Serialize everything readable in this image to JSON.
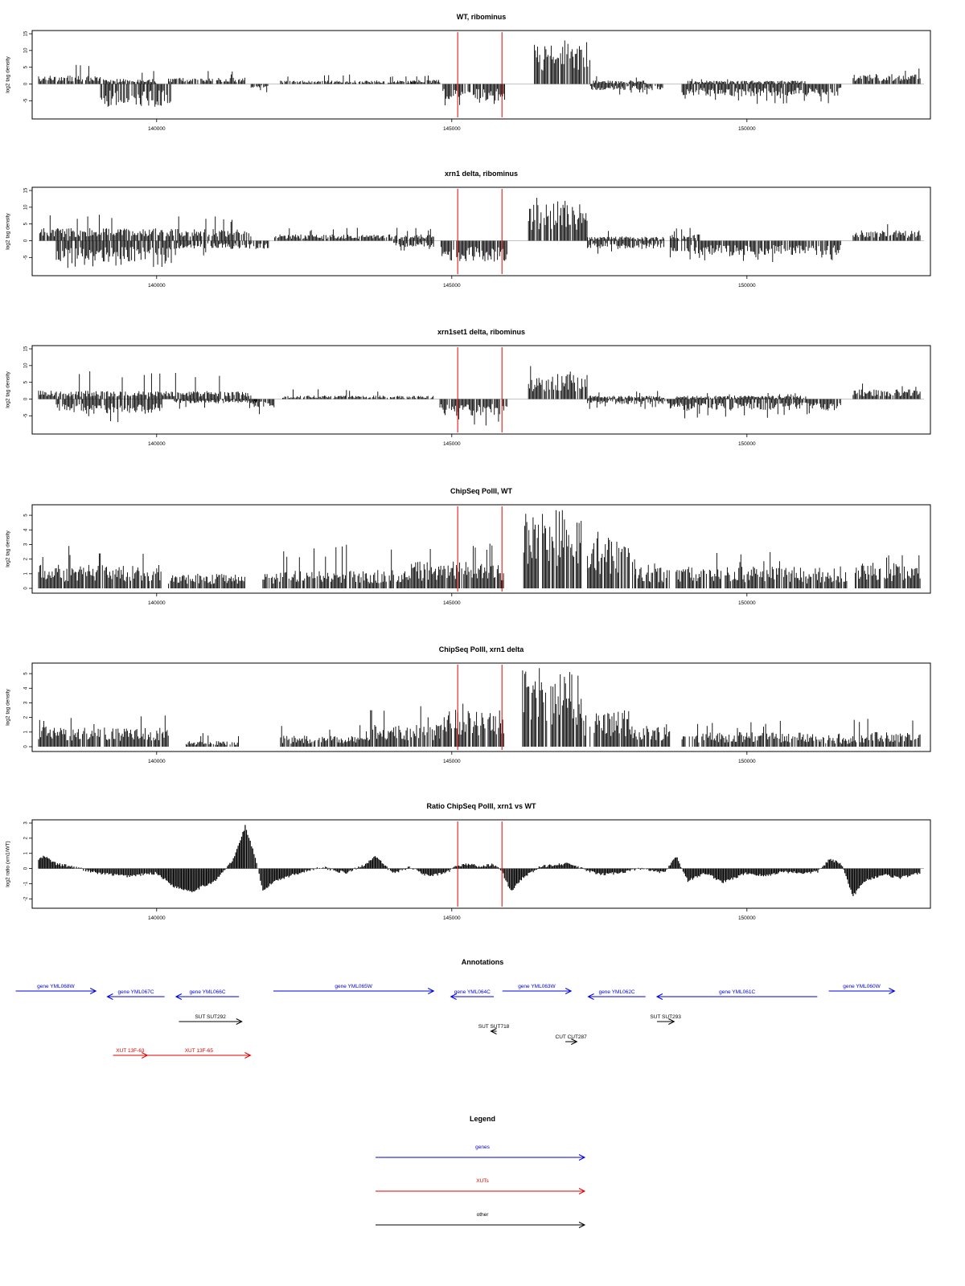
{
  "chart_data": [
    {
      "type": "bar",
      "title": "WT, ribominus",
      "ylabel": "log2 tag density",
      "xlim": [
        138000,
        153000
      ],
      "ylim": [
        -9,
        15
      ],
      "yticks": [
        -5,
        0,
        5,
        10,
        15
      ],
      "xticks": [
        140000,
        145000,
        150000
      ],
      "xtick_labels": [
        "140000",
        "145000",
        "150000"
      ],
      "vlines": [
        145100,
        145850
      ],
      "vline_color": "#e00000",
      "bar_color": "#000000",
      "segments": [
        {
          "from": 138000,
          "to": 139100,
          "sign": 1,
          "level": 2.0,
          "peak": 6.5
        },
        {
          "from": 139100,
          "to": 140000,
          "sign": 1,
          "level": 1.2,
          "peak": 4.0
        },
        {
          "from": 139050,
          "to": 140250,
          "sign": -1,
          "level": 5.5,
          "peak": 8.0
        },
        {
          "from": 140200,
          "to": 141500,
          "sign": 1,
          "level": 1.5,
          "peak": 4.0
        },
        {
          "from": 141600,
          "to": 141900,
          "sign": -1,
          "level": 1.0,
          "peak": 2.5
        },
        {
          "from": 142100,
          "to": 144400,
          "sign": 1,
          "level": 0.8,
          "peak": 3.0
        },
        {
          "from": 144300,
          "to": 144800,
          "sign": 1,
          "level": 1.0,
          "peak": 3.0
        },
        {
          "from": 144850,
          "to": 145900,
          "sign": -1,
          "level": 4.0,
          "peak": 6.5
        },
        {
          "from": 146400,
          "to": 147350,
          "sign": 1,
          "level": 10.0,
          "peak": 14.5
        },
        {
          "from": 147350,
          "to": 148600,
          "sign": -1,
          "level": 1.5,
          "peak": 3.5
        },
        {
          "from": 147400,
          "to": 148300,
          "sign": 1,
          "level": 0.8,
          "peak": 2.5
        },
        {
          "from": 148900,
          "to": 151600,
          "sign": -1,
          "level": 3.0,
          "peak": 6.0
        },
        {
          "from": 149000,
          "to": 151000,
          "sign": 1,
          "level": 0.8,
          "peak": 2.0
        },
        {
          "from": 151800,
          "to": 152950,
          "sign": 1,
          "level": 2.5,
          "peak": 5.5
        }
      ]
    },
    {
      "type": "bar",
      "title": "xrn1 delta, ribominus",
      "ylabel": "log2 tag density",
      "xlim": [
        138000,
        153000
      ],
      "ylim": [
        -9,
        15
      ],
      "yticks": [
        -5,
        0,
        5,
        10,
        15
      ],
      "xticks": [
        140000,
        145000,
        150000
      ],
      "xtick_labels": [
        "140000",
        "145000",
        "150000"
      ],
      "vlines": [
        145100,
        145850
      ],
      "vline_color": "#e00000",
      "bar_color": "#000000",
      "segments": [
        {
          "from": 138000,
          "to": 141600,
          "sign": 1,
          "level": 3.0,
          "peak": 8.0
        },
        {
          "from": 138300,
          "to": 140250,
          "sign": -1,
          "level": 5.0,
          "peak": 8.5
        },
        {
          "from": 140300,
          "to": 141900,
          "sign": -1,
          "level": 2.0,
          "peak": 4.5
        },
        {
          "from": 142000,
          "to": 144700,
          "sign": 1,
          "level": 1.5,
          "peak": 4.0
        },
        {
          "from": 144000,
          "to": 144700,
          "sign": -1,
          "level": 1.5,
          "peak": 3.0
        },
        {
          "from": 144800,
          "to": 145950,
          "sign": -1,
          "level": 5.0,
          "peak": 8.0
        },
        {
          "from": 146300,
          "to": 147300,
          "sign": 1,
          "level": 9.0,
          "peak": 13.0
        },
        {
          "from": 147300,
          "to": 148600,
          "sign": -1,
          "level": 2.0,
          "peak": 4.0
        },
        {
          "from": 147300,
          "to": 148600,
          "sign": 1,
          "level": 1.0,
          "peak": 3.0
        },
        {
          "from": 148700,
          "to": 151600,
          "sign": -1,
          "level": 3.5,
          "peak": 6.5
        },
        {
          "from": 148700,
          "to": 149200,
          "sign": 1,
          "level": 1.5,
          "peak": 4.0
        },
        {
          "from": 151800,
          "to": 152950,
          "sign": 1,
          "level": 2.5,
          "peak": 5.5
        }
      ]
    },
    {
      "type": "bar",
      "title": "xrn1set1 delta, ribominus",
      "ylabel": "log2 tag density",
      "xlim": [
        138000,
        153000
      ],
      "ylim": [
        -9,
        15
      ],
      "yticks": [
        -5,
        0,
        5,
        10,
        15
      ],
      "xticks": [
        140000,
        145000,
        150000
      ],
      "xtick_labels": [
        "140000",
        "145000",
        "150000"
      ],
      "vlines": [
        145100,
        145850
      ],
      "vline_color": "#e00000",
      "bar_color": "#000000",
      "segments": [
        {
          "from": 138000,
          "to": 141600,
          "sign": 1,
          "level": 2.0,
          "peak": 9.0
        },
        {
          "from": 138300,
          "to": 140100,
          "sign": -1,
          "level": 3.5,
          "peak": 7.0
        },
        {
          "from": 140300,
          "to": 141700,
          "sign": -1,
          "level": 1.0,
          "peak": 3.0
        },
        {
          "from": 141600,
          "to": 142000,
          "sign": -1,
          "level": 2.0,
          "peak": 5.0
        },
        {
          "from": 142100,
          "to": 144700,
          "sign": 1,
          "level": 0.8,
          "peak": 3.0
        },
        {
          "from": 144800,
          "to": 145950,
          "sign": -1,
          "level": 4.0,
          "peak": 8.0
        },
        {
          "from": 146300,
          "to": 147300,
          "sign": 1,
          "level": 6.0,
          "peak": 11.0
        },
        {
          "from": 147300,
          "to": 148700,
          "sign": -1,
          "level": 1.2,
          "peak": 3.0
        },
        {
          "from": 147300,
          "to": 148600,
          "sign": 1,
          "level": 0.8,
          "peak": 2.5
        },
        {
          "from": 148700,
          "to": 151600,
          "sign": -1,
          "level": 2.8,
          "peak": 6.0
        },
        {
          "from": 148800,
          "to": 151000,
          "sign": 1,
          "level": 0.8,
          "peak": 2.0
        },
        {
          "from": 151800,
          "to": 152950,
          "sign": 1,
          "level": 2.3,
          "peak": 5.0
        }
      ]
    },
    {
      "type": "bar",
      "title": "ChipSeq PolII, WT",
      "ylabel": "log2 tag density",
      "xlim": [
        138000,
        153000
      ],
      "ylim": [
        0,
        5.5
      ],
      "yticks": [
        0,
        1,
        2,
        3,
        4,
        5
      ],
      "xticks": [
        140000,
        145000,
        150000
      ],
      "xtick_labels": [
        "140000",
        "145000",
        "150000"
      ],
      "vlines": [
        145100,
        145850
      ],
      "vline_color": "#e00000",
      "bar_color": "#000000",
      "segments": [
        {
          "from": 138000,
          "to": 140100,
          "sign": 1,
          "level": 1.3,
          "peak": 3.0
        },
        {
          "from": 140200,
          "to": 141500,
          "sign": 1,
          "level": 0.8,
          "peak": 1.0
        },
        {
          "from": 141800,
          "to": 142100,
          "sign": 1,
          "level": 0.8,
          "peak": 1.0
        },
        {
          "from": 142100,
          "to": 144300,
          "sign": 1,
          "level": 1.0,
          "peak": 3.0
        },
        {
          "from": 144300,
          "to": 145900,
          "sign": 1,
          "level": 1.5,
          "peak": 3.2
        },
        {
          "from": 146200,
          "to": 147200,
          "sign": 1,
          "level": 4.3,
          "peak": 5.5
        },
        {
          "from": 147300,
          "to": 148100,
          "sign": 1,
          "level": 2.8,
          "peak": 4.0
        },
        {
          "from": 148100,
          "to": 148700,
          "sign": 1,
          "level": 1.2,
          "peak": 2.0
        },
        {
          "from": 148800,
          "to": 151000,
          "sign": 1,
          "level": 1.2,
          "peak": 2.5
        },
        {
          "from": 151000,
          "to": 151700,
          "sign": 1,
          "level": 0.9,
          "peak": 1.6
        },
        {
          "from": 151800,
          "to": 152950,
          "sign": 1,
          "level": 1.4,
          "peak": 3.0
        }
      ]
    },
    {
      "type": "bar",
      "title": "ChipSeq PolII, xrn1 delta",
      "ylabel": "log2 tag density",
      "xlim": [
        138000,
        153000
      ],
      "ylim": [
        0,
        5.5
      ],
      "yticks": [
        0,
        1,
        2,
        3,
        4,
        5
      ],
      "xticks": [
        140000,
        145000,
        150000
      ],
      "xtick_labels": [
        "140000",
        "145000",
        "150000"
      ],
      "vlines": [
        145100,
        145850
      ],
      "vline_color": "#e00000",
      "bar_color": "#000000",
      "segments": [
        {
          "from": 138000,
          "to": 140200,
          "sign": 1,
          "level": 1.1,
          "peak": 2.2
        },
        {
          "from": 140500,
          "to": 141400,
          "sign": 1,
          "level": 0.3,
          "peak": 1.0
        },
        {
          "from": 142100,
          "to": 143500,
          "sign": 1,
          "level": 0.6,
          "peak": 1.5
        },
        {
          "from": 143500,
          "to": 144800,
          "sign": 1,
          "level": 1.2,
          "peak": 2.8
        },
        {
          "from": 144800,
          "to": 145900,
          "sign": 1,
          "level": 2.0,
          "peak": 3.2
        },
        {
          "from": 146200,
          "to": 147200,
          "sign": 1,
          "level": 4.2,
          "peak": 5.5
        },
        {
          "from": 147200,
          "to": 148000,
          "sign": 1,
          "level": 2.0,
          "peak": 3.0
        },
        {
          "from": 148000,
          "to": 148700,
          "sign": 1,
          "level": 1.2,
          "peak": 2.0
        },
        {
          "from": 148900,
          "to": 151300,
          "sign": 1,
          "level": 0.8,
          "peak": 1.8
        },
        {
          "from": 151300,
          "to": 151800,
          "sign": 1,
          "level": 0.5,
          "peak": 1.0
        },
        {
          "from": 151800,
          "to": 152950,
          "sign": 1,
          "level": 0.8,
          "peak": 2.0
        }
      ]
    },
    {
      "type": "area",
      "title": "Ratio ChipSeq PolII, xrn1 vs WT",
      "ylabel": "log2 ratio (xrn1/WT)",
      "xlim": [
        138000,
        153000
      ],
      "ylim": [
        -2.3,
        3.0
      ],
      "yticks": [
        -2,
        -1,
        0,
        1,
        2,
        3
      ],
      "xticks": [
        140000,
        145000,
        150000
      ],
      "xtick_labels": [
        "140000",
        "145000",
        "150000"
      ],
      "vlines": [
        145100,
        145850
      ],
      "vline_color": "#e00000",
      "x": [
        138000,
        138100,
        138300,
        138600,
        139000,
        139500,
        140000,
        140300,
        140600,
        141000,
        141300,
        141500,
        141650,
        141800,
        142000,
        142400,
        142800,
        143200,
        143500,
        143700,
        144000,
        144300,
        144600,
        144900,
        145100,
        145300,
        145500,
        145700,
        145850,
        146000,
        146200,
        146500,
        146800,
        147000,
        147200,
        147500,
        147800,
        148200,
        148600,
        148800,
        149000,
        149300,
        149600,
        150000,
        150300,
        150600,
        151000,
        151200,
        151400,
        151600,
        151800,
        152000,
        152300,
        152600,
        152950
      ],
      "values": [
        0.6,
        0.8,
        0.3,
        0.1,
        -0.3,
        -0.5,
        -0.3,
        -1.2,
        -1.5,
        -0.8,
        0.6,
        2.8,
        1.0,
        -1.5,
        -0.8,
        -0.3,
        0.1,
        -0.3,
        0.2,
        0.8,
        -0.3,
        0.1,
        -0.5,
        -0.3,
        0.2,
        0.3,
        0.1,
        0.3,
        -0.2,
        -1.5,
        -0.6,
        0.1,
        0.3,
        0.3,
        0.0,
        -0.4,
        -0.3,
        0.0,
        -0.3,
        0.8,
        -0.8,
        -0.3,
        -0.9,
        -0.3,
        -0.5,
        -0.2,
        -0.3,
        -0.2,
        0.6,
        0.3,
        -1.8,
        -0.8,
        -0.4,
        -0.6,
        -0.3
      ]
    }
  ],
  "annotations": {
    "title": "Annotations",
    "xlim": [
      138000,
      153000
    ],
    "items": [
      {
        "label": "gene YML068W",
        "kind": "gene",
        "from": 137600,
        "to": 139000,
        "row": 0,
        "strand": "+"
      },
      {
        "label": "gene YML067C",
        "kind": "gene",
        "from": 139200,
        "to": 140200,
        "row": 1,
        "strand": "-"
      },
      {
        "label": "gene YML066C",
        "kind": "gene",
        "from": 140400,
        "to": 141500,
        "row": 1,
        "strand": "-"
      },
      {
        "label": "gene YML065W",
        "kind": "gene",
        "from": 142100,
        "to": 144900,
        "row": 0,
        "strand": "+"
      },
      {
        "label": "gene YML064C",
        "kind": "gene",
        "from": 145200,
        "to": 145950,
        "row": 1,
        "strand": "-"
      },
      {
        "label": "gene YML063W",
        "kind": "gene",
        "from": 146100,
        "to": 147300,
        "row": 0,
        "strand": "+"
      },
      {
        "label": "gene YML062C",
        "kind": "gene",
        "from": 147600,
        "to": 148600,
        "row": 1,
        "strand": "-"
      },
      {
        "label": "gene YML061C",
        "kind": "gene",
        "from": 148800,
        "to": 151600,
        "row": 1,
        "strand": "-"
      },
      {
        "label": "gene YML060W",
        "kind": "gene",
        "from": 151800,
        "to": 152950,
        "row": 0,
        "strand": "+"
      },
      {
        "label": "SUT SUT292",
        "kind": "other",
        "from": 140450,
        "to": 141550,
        "row": 2,
        "strand": "+"
      },
      {
        "label": "SUT SUT718",
        "kind": "other",
        "from": 145900,
        "to": 146000,
        "row": 3,
        "strand": "-"
      },
      {
        "label": "CUT CUT287",
        "kind": "other",
        "from": 147200,
        "to": 147400,
        "row": 4,
        "strand": "+"
      },
      {
        "label": "SUT SUT293",
        "kind": "other",
        "from": 148800,
        "to": 149100,
        "row": 2,
        "strand": "+"
      },
      {
        "label": "XUT 13F-63",
        "kind": "xut",
        "from": 139300,
        "to": 139900,
        "row": 5,
        "strand": "+"
      },
      {
        "label": "XUT 13F-65",
        "kind": "xut",
        "from": 139900,
        "to": 141700,
        "row": 5,
        "strand": "+"
      }
    ]
  },
  "legend": {
    "title": "Legend",
    "items": [
      {
        "label": "genes",
        "color": "#0000e0"
      },
      {
        "label": "XUTs",
        "color": "#e00000"
      },
      {
        "label": "other",
        "color": "#000000"
      }
    ]
  },
  "colors": {
    "gene": "#0000e0",
    "xut": "#e00000",
    "other": "#000000"
  }
}
